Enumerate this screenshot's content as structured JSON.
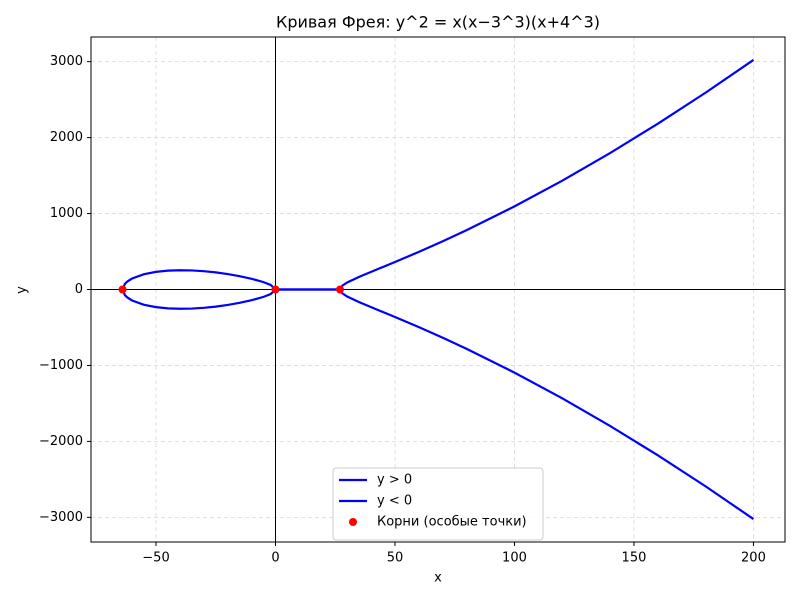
{
  "chart_data": {
    "type": "line",
    "title": "Кривая Фрея: y^2 = x(x−3^3)(x+4^3)",
    "x_label": "x",
    "y_label": "y",
    "x": [
      -64,
      -63,
      -62,
      -60,
      -55,
      -50,
      -45,
      -40,
      -35,
      -30,
      -25,
      -20,
      -15,
      -10,
      -5,
      -2,
      0,
      5,
      10,
      15,
      20,
      25,
      27,
      28,
      30,
      35,
      40,
      50,
      60,
      70,
      80,
      100,
      120,
      140,
      160,
      180,
      200
    ],
    "series": [
      {
        "name": "y > 0",
        "color": "#0000ff",
        "values": [
          0,
          75.3,
          105.1,
          144.5,
          201.5,
          232.2,
          248.1,
          253.6,
          250.9,
          241.1,
          225.2,
          203.4,
          175.7,
          141.4,
          97.2,
          60.0,
          0,
          0,
          0,
          0,
          0,
          0,
          0,
          50.8,
          92.0,
          166.5,
          232.5,
          362.1,
          495.5,
          635.1,
          781.4,
          1094.2,
          1433.0,
          1796.5,
          2183.3,
          2592.3,
          3022.3
        ]
      },
      {
        "name": "y < 0",
        "color": "#0000ff",
        "values": [
          0,
          -75.3,
          -105.1,
          -144.5,
          -201.5,
          -232.2,
          -248.1,
          -253.6,
          -250.9,
          -241.1,
          -225.2,
          -203.4,
          -175.7,
          -141.4,
          -97.2,
          -60.0,
          0,
          0,
          0,
          0,
          0,
          0,
          0,
          -50.8,
          -92.0,
          -166.5,
          -232.5,
          -362.1,
          -495.5,
          -635.1,
          -781.4,
          -1094.2,
          -1433.0,
          -1796.5,
          -2183.3,
          -2592.3,
          -3022.3
        ]
      }
    ],
    "points": {
      "name": "Корни (особые точки)",
      "color": "#ff0000",
      "x": [
        -64,
        0,
        27
      ],
      "y": [
        0,
        0,
        0
      ]
    },
    "xlim": [
      -77.2,
      213.2
    ],
    "ylim": [
      -3324.5,
      3324.5
    ],
    "xticks": [
      {
        "value": -50,
        "label": "−50"
      },
      0,
      50,
      100,
      150,
      200
    ],
    "yticks": [
      {
        "value": -3000,
        "label": "−3000"
      },
      {
        "value": -2000,
        "label": "−2000"
      },
      {
        "value": -1000,
        "label": "−1000"
      },
      0,
      1000,
      2000,
      3000
    ],
    "grid": true,
    "legend": "lower center"
  }
}
